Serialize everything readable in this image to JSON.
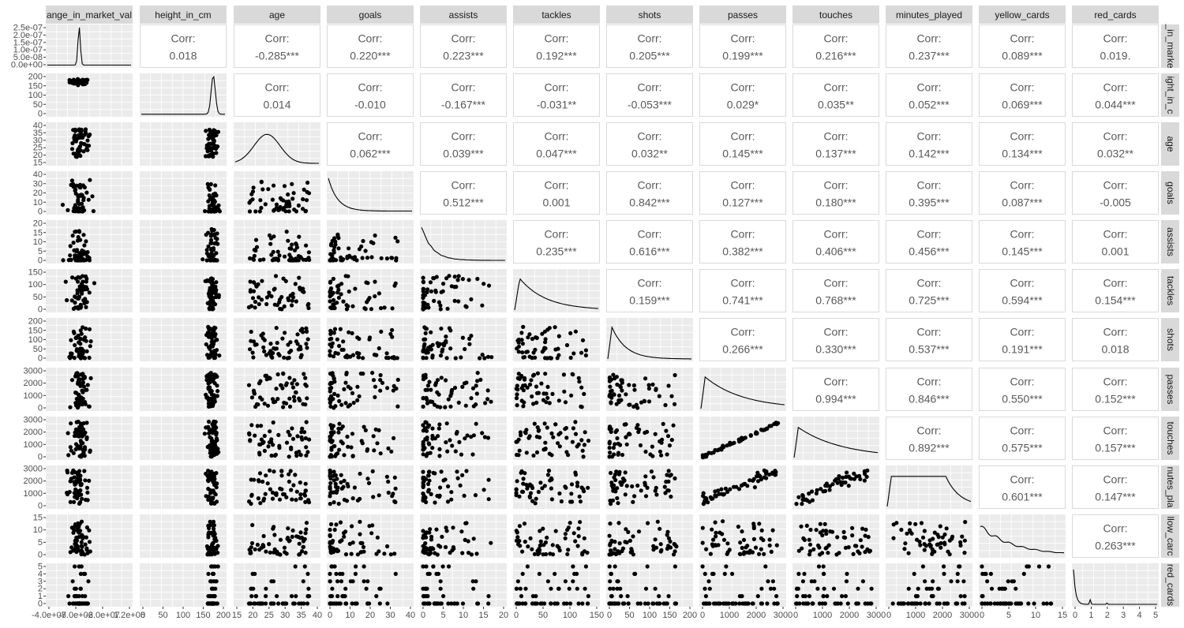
{
  "chart_data": {
    "type": "scatter-matrix",
    "variables": [
      "ange_in_market_val",
      "height_in_cm",
      "age",
      "goals",
      "assists",
      "tackles",
      "shots",
      "passes",
      "touches",
      "minutes_played",
      "yellow_cards",
      "red_cards"
    ],
    "row_labels": [
      "_in_marke",
      "ight_in_c",
      "age",
      "goals",
      "assists",
      "tackles",
      "shots",
      "passes",
      "touches",
      "nutes_pla",
      "llow_carc",
      "red_cards"
    ],
    "corr_prefix": "Corr:",
    "correlations": [
      [
        "",
        "0.018",
        "-0.285***",
        "0.220***",
        "0.223***",
        "0.192***",
        "0.205***",
        "0.199***",
        "0.216***",
        "0.237***",
        "0.089***",
        "0.019."
      ],
      [
        "",
        "",
        "0.014",
        "-0.010",
        "-0.167***",
        "-0.031**",
        "-0.053***",
        "0.029*",
        "0.035**",
        "0.052***",
        "0.069***",
        "0.044***"
      ],
      [
        "",
        "",
        "",
        "0.062***",
        "0.039***",
        "0.047***",
        "0.032**",
        "0.145***",
        "0.137***",
        "0.142***",
        "0.134***",
        "0.032**"
      ],
      [
        "",
        "",
        "",
        "",
        "0.512***",
        "0.001",
        "0.842***",
        "0.127***",
        "0.180***",
        "0.395***",
        "0.087***",
        "-0.005"
      ],
      [
        "",
        "",
        "",
        "",
        "",
        "0.235***",
        "0.616***",
        "0.382***",
        "0.406***",
        "0.456***",
        "0.145***",
        "0.001"
      ],
      [
        "",
        "",
        "",
        "",
        "",
        "",
        "0.159***",
        "0.741***",
        "0.768***",
        "0.725***",
        "0.594***",
        "0.154***"
      ],
      [
        "",
        "",
        "",
        "",
        "",
        "",
        "",
        "0.266***",
        "0.330***",
        "0.537***",
        "0.191***",
        "0.018"
      ],
      [
        "",
        "",
        "",
        "",
        "",
        "",
        "",
        "",
        "0.994***",
        "0.846***",
        "0.550***",
        "0.152***"
      ],
      [
        "",
        "",
        "",
        "",
        "",
        "",
        "",
        "",
        "",
        "0.892***",
        "0.575***",
        "0.157***"
      ],
      [
        "",
        "",
        "",
        "",
        "",
        "",
        "",
        "",
        "",
        "",
        "0.601***",
        "0.147***"
      ],
      [
        "",
        "",
        "",
        "",
        "",
        "",
        "",
        "",
        "",
        "",
        "",
        "0.263***"
      ],
      [
        "",
        "",
        "",
        "",
        "",
        "",
        "",
        "",
        "",
        "",
        "",
        ""
      ]
    ],
    "x_ticks": [
      [
        "-4.0e+07",
        "-8.0e+06",
        "-2.0e+07",
        "1.2e+08"
      ],
      [
        "0",
        "50",
        "100",
        "150",
        "200"
      ],
      [
        "15",
        "20",
        "25",
        "30",
        "35",
        "40"
      ],
      [
        "0",
        "10",
        "20",
        "30",
        "40"
      ],
      [
        "0",
        "5",
        "10",
        "15",
        "20"
      ],
      [
        "0",
        "50",
        "100",
        "150"
      ],
      [
        "0",
        "50",
        "100",
        "150",
        "200"
      ],
      [
        "0",
        "1000",
        "2000",
        "3000"
      ],
      [
        "0",
        "1000",
        "2000",
        "3000"
      ],
      [
        "0",
        "1000",
        "2000",
        "3000"
      ],
      [
        "0",
        "5",
        "10",
        "15"
      ],
      [
        "0",
        "1",
        "2",
        "3",
        "4",
        "5"
      ]
    ],
    "y_ticks": [
      [
        "0.0e+00",
        "5.0e-08",
        "1.0e-07",
        "1.5e-07",
        "2.0e-07",
        "2.5e-07"
      ],
      [
        "0",
        "50",
        "100",
        "150",
        "200"
      ],
      [
        "15",
        "20",
        "25",
        "30",
        "35",
        "40"
      ],
      [
        "0",
        "10",
        "20",
        "30",
        "40"
      ],
      [
        "0",
        "5",
        "10",
        "15",
        "20"
      ],
      [
        "0",
        "50",
        "100",
        "150"
      ],
      [
        "0",
        "50",
        "100",
        "150",
        "200"
      ],
      [
        "0",
        "1000",
        "2000",
        "3000"
      ],
      [
        "0",
        "1000",
        "2000",
        "3000"
      ],
      [
        "0",
        "1000",
        "2000",
        "3000"
      ],
      [
        "0",
        "5",
        "10",
        "15"
      ],
      [
        "0",
        "1",
        "2",
        "3",
        "4",
        "5"
      ]
    ],
    "colors": {
      "panel_bg": "#ebebeb",
      "grid": "#ffffff",
      "strip_bg": "#d9d9d9",
      "points": "#000000",
      "corr_text": "#595959",
      "corr_border": "#d9d9d9"
    }
  }
}
